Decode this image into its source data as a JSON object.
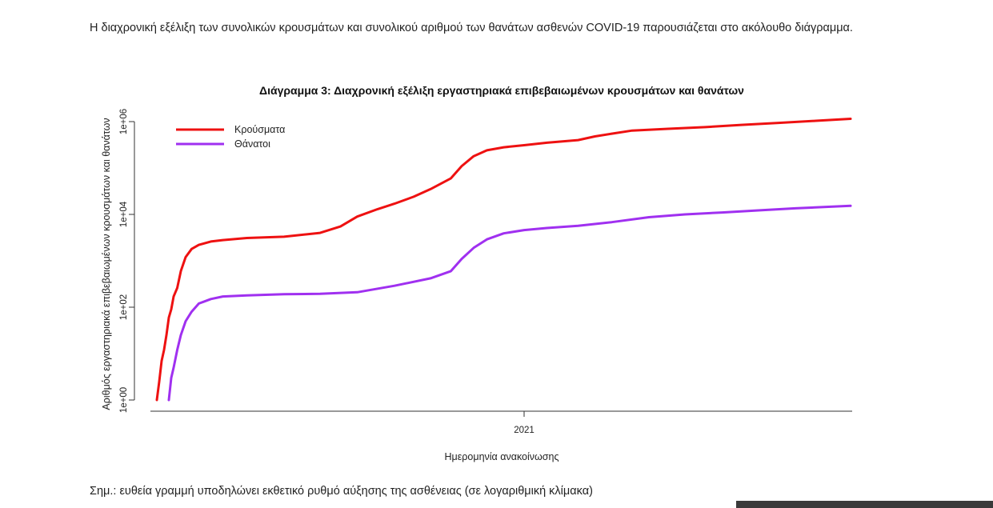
{
  "intro_text": "Η διαχρονική εξέλιξη των συνολικών κρουσμάτων και συνολικού αριθμού των θανάτων ασθενών COVID-19 παρουσιάζεται στο ακόλουθο διάγραμμα.",
  "note_text": "Σημ.: ευθεία γραμμή υποδηλώνει εκθετικό ρυθμό αύξησης της ασθένειας (σε λογαριθμική κλίμακα)",
  "chart_data": {
    "type": "line",
    "title": "Διάγραμμα 3: Διαχρονική εξέλιξη εργαστηριακά επιβεβαιωμένων κρουσμάτων και θανάτων",
    "xlabel": "Ημερομηνία ανακοίνωσης",
    "ylabel": "Αριθμός εργαστηριακά επιβεβαιωμένων κρουσμάτων και θανάτων",
    "y_scale": "log10",
    "ylim": [
      1,
      1000000
    ],
    "yticks": [
      {
        "value": 1,
        "label": "1e+00"
      },
      {
        "value": 100,
        "label": "1e+02"
      },
      {
        "value": 10000,
        "label": "1e+04"
      },
      {
        "value": 1000000,
        "label": "1e+06"
      }
    ],
    "xlim": [
      "2020-02-26",
      "2021-09-30"
    ],
    "xticks": [
      {
        "value": "2021-01-01",
        "label": "2021"
      }
    ],
    "grid": false,
    "legend_position": "top-left",
    "series": [
      {
        "name": "Κρούσματα",
        "color": "#ee1111",
        "x": [
          "2020-03-01",
          "2020-03-03",
          "2020-03-05",
          "2020-03-07",
          "2020-03-09",
          "2020-03-11",
          "2020-03-13",
          "2020-03-15",
          "2020-03-18",
          "2020-03-21",
          "2020-03-25",
          "2020-03-30",
          "2020-04-05",
          "2020-04-15",
          "2020-04-25",
          "2020-05-15",
          "2020-06-15",
          "2020-07-15",
          "2020-08-01",
          "2020-08-15",
          "2020-09-01",
          "2020-09-15",
          "2020-10-01",
          "2020-10-15",
          "2020-11-01",
          "2020-11-10",
          "2020-11-20",
          "2020-12-01",
          "2020-12-15",
          "2021-01-01",
          "2021-01-20",
          "2021-02-15",
          "2021-03-01",
          "2021-03-15",
          "2021-04-01",
          "2021-05-01",
          "2021-06-01",
          "2021-07-01",
          "2021-08-01",
          "2021-09-01",
          "2021-09-30"
        ],
        "y": [
          1,
          2.5,
          7,
          12,
          25,
          60,
          90,
          170,
          260,
          600,
          1200,
          1800,
          2200,
          2600,
          2800,
          3100,
          3300,
          4000,
          5500,
          9000,
          13000,
          17000,
          24000,
          35000,
          60000,
          110000,
          180000,
          240000,
          280000,
          310000,
          350000,
          400000,
          480000,
          550000,
          640000,
          700000,
          760000,
          850000,
          940000,
          1040000,
          1150000
        ]
      },
      {
        "name": "Θάνατοι",
        "color": "#a030f0",
        "x": [
          "2020-03-11",
          "2020-03-13",
          "2020-03-15",
          "2020-03-18",
          "2020-03-21",
          "2020-03-25",
          "2020-03-30",
          "2020-04-05",
          "2020-04-15",
          "2020-04-25",
          "2020-05-15",
          "2020-06-15",
          "2020-07-15",
          "2020-08-15",
          "2020-09-15",
          "2020-10-15",
          "2020-11-01",
          "2020-11-10",
          "2020-11-20",
          "2020-12-01",
          "2020-12-15",
          "2021-01-01",
          "2021-01-20",
          "2021-02-15",
          "2021-03-15",
          "2021-04-15",
          "2021-05-15",
          "2021-06-15",
          "2021-07-15",
          "2021-08-15",
          "2021-09-30"
        ],
        "y": [
          1,
          3,
          5,
          12,
          25,
          50,
          80,
          120,
          150,
          170,
          180,
          190,
          195,
          210,
          290,
          420,
          600,
          1100,
          1900,
          2900,
          3900,
          4600,
          5100,
          5700,
          6800,
          8700,
          10000,
          11000,
          12200,
          13500,
          15300
        ]
      }
    ]
  }
}
